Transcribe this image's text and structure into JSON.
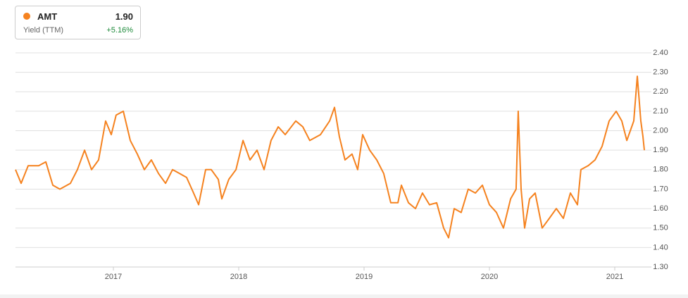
{
  "chart_data": {
    "type": "line",
    "legend": {
      "value": "1.90",
      "metric": "Yield (TTM)",
      "change": "+5.16%"
    },
    "x": [
      2016.219,
      2016.264,
      2016.32,
      2016.404,
      2016.461,
      2016.517,
      2016.573,
      2016.657,
      2016.713,
      2016.77,
      2016.826,
      2016.882,
      2016.938,
      2016.983,
      2017.022,
      2017.079,
      2017.135,
      2017.191,
      2017.247,
      2017.303,
      2017.36,
      2017.416,
      2017.472,
      2017.528,
      2017.584,
      2017.64,
      2017.68,
      2017.736,
      2017.781,
      2017.837,
      2017.865,
      2017.921,
      2017.978,
      2018.034,
      2018.09,
      2018.146,
      2018.202,
      2018.258,
      2018.315,
      2018.371,
      2018.455,
      2018.511,
      2018.567,
      2018.652,
      2018.725,
      2018.764,
      2018.803,
      2018.848,
      2018.904,
      2018.949,
      2018.989,
      2019.045,
      2019.101,
      2019.157,
      2019.213,
      2019.27,
      2019.298,
      2019.354,
      2019.41,
      2019.466,
      2019.522,
      2019.579,
      2019.635,
      2019.674,
      2019.719,
      2019.775,
      2019.831,
      2019.888,
      2019.944,
      2020.0,
      2020.056,
      2020.112,
      2020.169,
      2020.213,
      2020.23,
      2020.253,
      2020.281,
      2020.32,
      2020.365,
      2020.421,
      2020.478,
      2020.534,
      2020.59,
      2020.646,
      2020.702,
      2020.73,
      2020.787,
      2020.843,
      2020.899,
      2020.955,
      2021.011,
      2021.056,
      2021.096,
      2021.124,
      2021.152,
      2021.18,
      2021.208,
      2021.225,
      2021.236
    ],
    "series": [
      {
        "name": "AMT",
        "color": "#f5821f",
        "values": [
          1.8,
          1.73,
          1.82,
          1.82,
          1.84,
          1.72,
          1.7,
          1.73,
          1.8,
          1.9,
          1.8,
          1.85,
          2.05,
          1.98,
          2.08,
          2.1,
          1.95,
          1.88,
          1.8,
          1.85,
          1.78,
          1.73,
          1.8,
          1.78,
          1.76,
          1.68,
          1.62,
          1.8,
          1.8,
          1.75,
          1.65,
          1.75,
          1.8,
          1.95,
          1.85,
          1.9,
          1.8,
          1.95,
          2.02,
          1.98,
          2.05,
          2.02,
          1.95,
          1.98,
          2.05,
          2.12,
          1.97,
          1.85,
          1.88,
          1.8,
          1.98,
          1.9,
          1.85,
          1.78,
          1.63,
          1.63,
          1.72,
          1.63,
          1.6,
          1.68,
          1.62,
          1.63,
          1.5,
          1.45,
          1.6,
          1.58,
          1.7,
          1.68,
          1.72,
          1.62,
          1.58,
          1.5,
          1.65,
          1.7,
          2.1,
          1.7,
          1.5,
          1.65,
          1.68,
          1.5,
          1.55,
          1.6,
          1.55,
          1.68,
          1.62,
          1.8,
          1.82,
          1.85,
          1.92,
          2.05,
          2.1,
          2.05,
          1.95,
          2.0,
          2.05,
          2.28,
          2.05,
          1.97,
          1.9
        ]
      }
    ],
    "xlim": [
      2016.219,
      2021.236
    ],
    "xticks": [
      2017,
      2018,
      2019,
      2020,
      2021
    ],
    "ylim": [
      1.3,
      2.4
    ],
    "yticks": [
      {
        "value": 1.3,
        "label": "1.30"
      },
      {
        "value": 1.4,
        "label": "1.40"
      },
      {
        "value": 1.5,
        "label": "1.50"
      },
      {
        "value": 1.6,
        "label": "1.60"
      },
      {
        "value": 1.7,
        "label": "1.70"
      },
      {
        "value": 1.8,
        "label": "1.80"
      },
      {
        "value": 1.9,
        "label": "1.90"
      },
      {
        "value": 2.0,
        "label": "2.00"
      },
      {
        "value": 2.1,
        "label": "2.10"
      },
      {
        "value": 2.2,
        "label": "2.20"
      },
      {
        "value": 2.3,
        "label": "2.30"
      },
      {
        "value": 2.4,
        "label": "2.40"
      }
    ],
    "grid": true
  }
}
